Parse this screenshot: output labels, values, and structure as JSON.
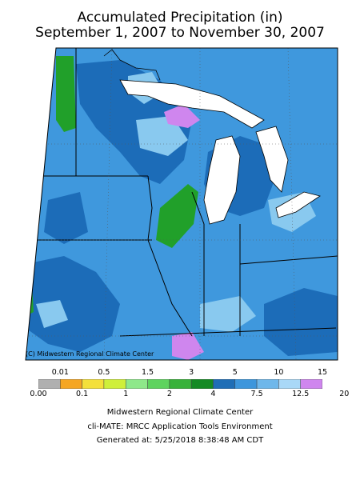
{
  "title": "Accumulated Precipitation (in)",
  "subtitle": "September 1, 2007 to November 30, 2007",
  "map": {
    "credit": "(C) Midwestern Regional Climate Center",
    "colors": {
      "water": "#ffffff",
      "dark_blue": "#1c6cb8",
      "mid_blue": "#3f98dd",
      "light_blue": "#89c9ef",
      "green": "#21a02a",
      "purple": "#cf86ee"
    }
  },
  "legend": {
    "upper_labels": [
      "0.01",
      "0.5",
      "1.5",
      "3",
      "5",
      "10",
      "15"
    ],
    "lower_labels": [
      "0.00",
      "0.1",
      "1",
      "2",
      "4",
      "7.5",
      "12.5",
      "20"
    ],
    "colors": [
      "#b0b0b0",
      "#f5a623",
      "#f4e03b",
      "#cfef3a",
      "#8ee88a",
      "#5ed35e",
      "#38b23a",
      "#148a24",
      "#1f6eb6",
      "#3d96dc",
      "#6eb7ea",
      "#a9d8f7",
      "#cf86ee"
    ]
  },
  "footer": {
    "line1": "Midwestern Regional Climate Center",
    "line2": "cli-MATE: MRCC Application Tools Environment",
    "line3": "Generated at: 5/25/2018 8:38:48 AM CDT"
  }
}
